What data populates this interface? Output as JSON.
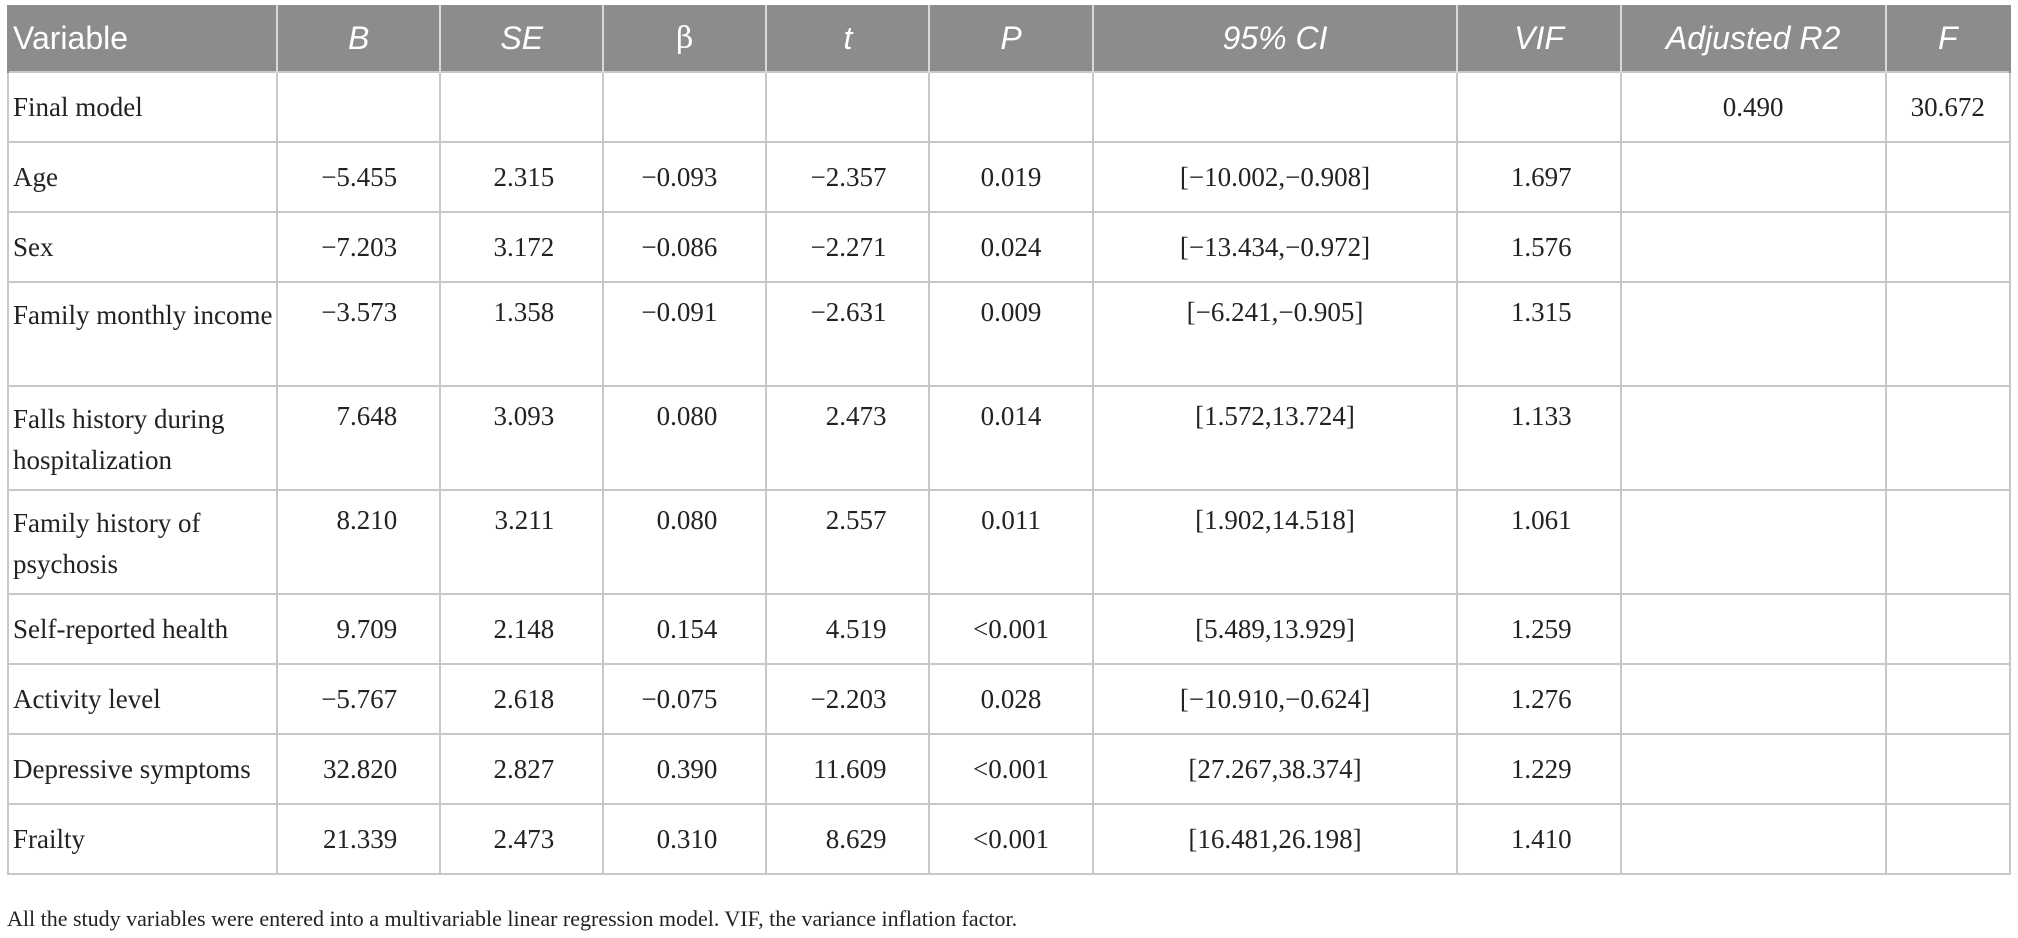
{
  "table": {
    "headers": [
      "Variable",
      "B",
      "SE",
      "β",
      "t",
      "P",
      "95% CI",
      "VIF",
      "Adjusted R2",
      "F"
    ],
    "rows": [
      {
        "variable": "Final model",
        "B": "",
        "SE": "",
        "beta": "",
        "t": "",
        "P": "",
        "CI": "",
        "VIF": "",
        "adj_r2": "0.490",
        "F": "30.672"
      },
      {
        "variable": "Age",
        "B": "−5.455",
        "SE": "2.315",
        "beta": "−0.093",
        "t": "−2.357",
        "P": "0.019",
        "CI": "[−10.002,−0.908]",
        "VIF": "1.697",
        "adj_r2": "",
        "F": ""
      },
      {
        "variable": "Sex",
        "B": "−7.203",
        "SE": "3.172",
        "beta": "−0.086",
        "t": "−2.271",
        "P": "0.024",
        "CI": "[−13.434,−0.972]",
        "VIF": "1.576",
        "adj_r2": "",
        "F": ""
      },
      {
        "variable": "Family monthly income",
        "B": "−3.573",
        "SE": "1.358",
        "beta": "−0.091",
        "t": "−2.631",
        "P": "0.009",
        "CI": "[−6.241,−0.905]",
        "VIF": "1.315",
        "adj_r2": "",
        "F": ""
      },
      {
        "variable": "Falls history during hospitalization",
        "B": "7.648",
        "SE": "3.093",
        "beta": "0.080",
        "t": "2.473",
        "P": "0.014",
        "CI": "[1.572,13.724]",
        "VIF": "1.133",
        "adj_r2": "",
        "F": ""
      },
      {
        "variable": "Family history of psychosis",
        "B": "8.210",
        "SE": "3.211",
        "beta": "0.080",
        "t": "2.557",
        "P": "0.011",
        "CI": "[1.902,14.518]",
        "VIF": "1.061",
        "adj_r2": "",
        "F": ""
      },
      {
        "variable": "Self-reported health",
        "B": "9.709",
        "SE": "2.148",
        "beta": "0.154",
        "t": "4.519",
        "P": "<0.001",
        "CI": "[5.489,13.929]",
        "VIF": "1.259",
        "adj_r2": "",
        "F": ""
      },
      {
        "variable": "Activity level",
        "B": "−5.767",
        "SE": "2.618",
        "beta": "−0.075",
        "t": "−2.203",
        "P": "0.028",
        "CI": "[−10.910,−0.624]",
        "VIF": "1.276",
        "adj_r2": "",
        "F": ""
      },
      {
        "variable": "Depressive symptoms",
        "B": "32.820",
        "SE": "2.827",
        "beta": "0.390",
        "t": "11.609",
        "P": "<0.001",
        "CI": "[27.267,38.374]",
        "VIF": "1.229",
        "adj_r2": "",
        "F": ""
      },
      {
        "variable": "Frailty",
        "B": "21.339",
        "SE": "2.473",
        "beta": "0.310",
        "t": "8.629",
        "P": "<0.001",
        "CI": "[16.481,26.198]",
        "VIF": "1.410",
        "adj_r2": "",
        "F": ""
      }
    ]
  },
  "footnote": "All the study variables were entered into a multivariable linear regression model. VIF, the variance inflation factor.",
  "colors": {
    "header_bg": "#8c8c8c",
    "header_text": "#ffffff",
    "grid": "#c8c8c8"
  }
}
